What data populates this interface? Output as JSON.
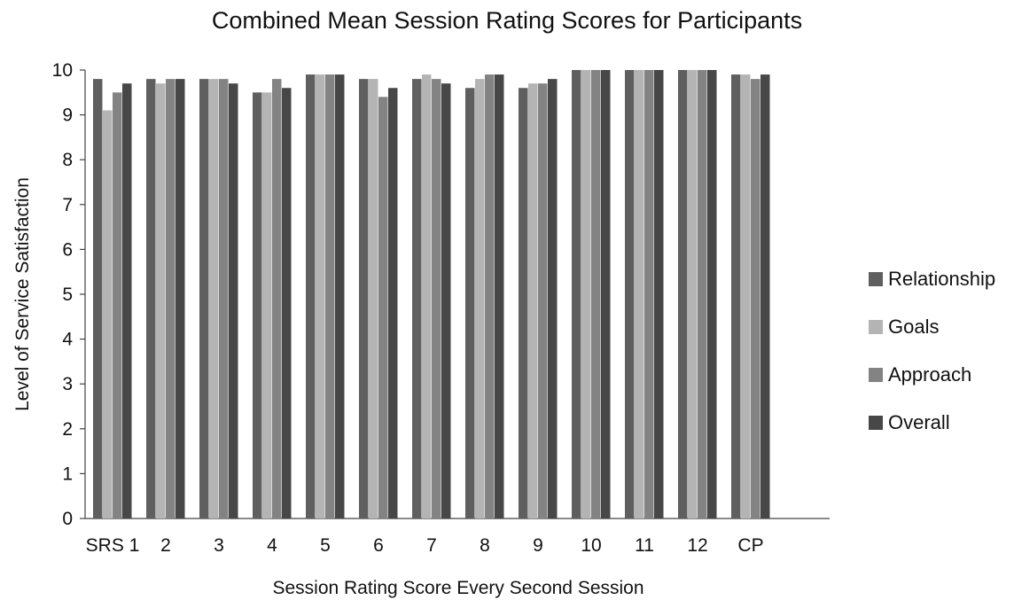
{
  "chart_data": {
    "type": "bar",
    "title": "Combined Mean Session Rating Scores for Participants",
    "xlabel": "Session Rating Score Every Second Session",
    "ylabel": "Level of Service Satisfaction",
    "categories": [
      "SRS 1",
      "2",
      "3",
      "4",
      "5",
      "6",
      "7",
      "8",
      "9",
      "10",
      "11",
      "12",
      "CP"
    ],
    "ylim": [
      0,
      10
    ],
    "yticks": [
      0,
      1,
      2,
      3,
      4,
      5,
      6,
      7,
      8,
      9,
      10
    ],
    "grid": false,
    "legend_position": "right",
    "series": [
      {
        "name": "Relationship",
        "color": "#5f5f5f",
        "values": [
          9.8,
          9.8,
          9.8,
          9.5,
          9.9,
          9.8,
          9.8,
          9.6,
          9.6,
          10,
          10,
          10,
          9.9
        ]
      },
      {
        "name": "Goals",
        "color": "#b4b4b4",
        "values": [
          9.1,
          9.7,
          9.8,
          9.5,
          9.9,
          9.8,
          9.9,
          9.8,
          9.7,
          10,
          10,
          10,
          9.9
        ]
      },
      {
        "name": "Approach",
        "color": "#838383",
        "values": [
          9.5,
          9.8,
          9.8,
          9.8,
          9.9,
          9.4,
          9.8,
          9.9,
          9.7,
          10,
          10,
          10,
          9.8
        ]
      },
      {
        "name": "Overall",
        "color": "#474747",
        "values": [
          9.7,
          9.8,
          9.7,
          9.6,
          9.9,
          9.6,
          9.7,
          9.9,
          9.8,
          10,
          10,
          10,
          9.9
        ]
      }
    ]
  }
}
